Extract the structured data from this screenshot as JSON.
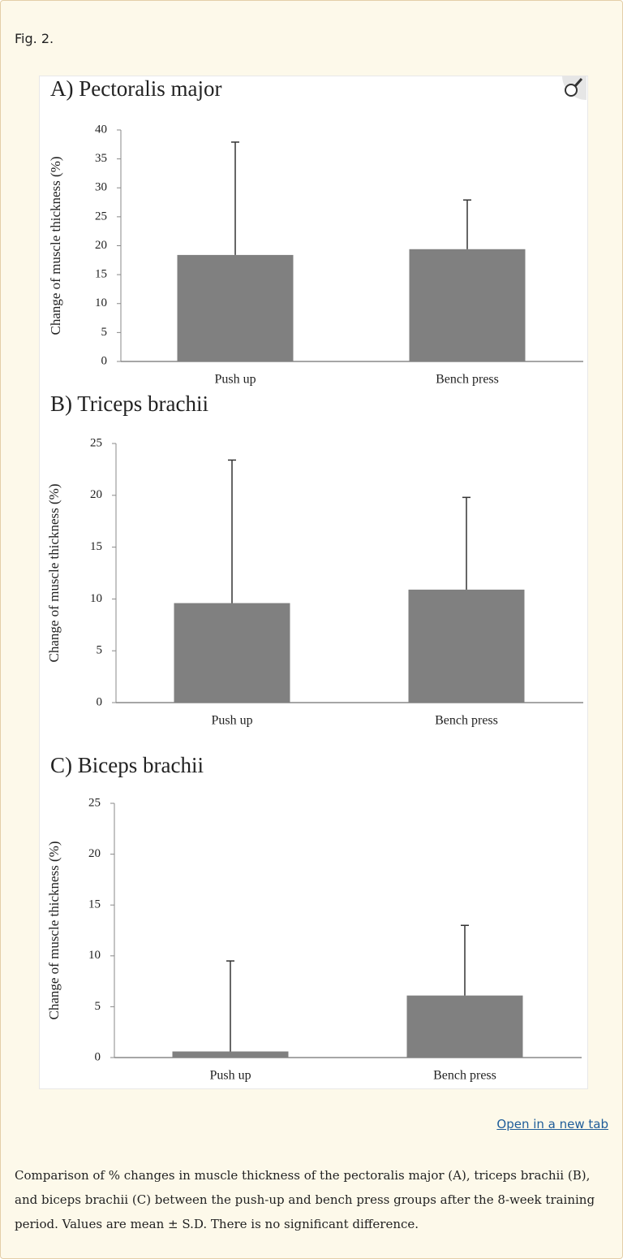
{
  "figure_label": "Fig. 2.",
  "link": "Open in a new tab",
  "caption": "Comparison of % changes in muscle thickness of the pectoralis major (A), triceps brachii (B), and biceps brachii (C) between the push-up and bench press groups after the 8-week training period. Values are mean ± S.D. There is no significant difference.",
  "chart_data": [
    {
      "type": "bar",
      "title": "A) Pectoralis major",
      "y_label": "Change of muscle thickness (%)",
      "categories": [
        "Push up",
        "Bench press"
      ],
      "values": [
        18.4,
        19.4
      ],
      "errors": [
        19.5,
        8.5
      ],
      "color": "#808080",
      "ylim": [
        0,
        40
      ],
      "yticks": [
        0,
        5,
        10,
        15,
        20,
        25,
        30,
        35,
        40
      ]
    },
    {
      "type": "bar",
      "title": "B) Triceps brachii",
      "y_label": "Change of muscle thickness (%)",
      "categories": [
        "Push up",
        "Bench press"
      ],
      "values": [
        9.6,
        10.9
      ],
      "errors": [
        13.8,
        8.9
      ],
      "color": "#808080",
      "ylim": [
        0,
        25
      ],
      "yticks": [
        0,
        5,
        10,
        15,
        20,
        25
      ]
    },
    {
      "type": "bar",
      "title": "C) Biceps brachii",
      "y_label": "Change of muscle thickness (%)",
      "categories": [
        "Push up",
        "Bench press"
      ],
      "values": [
        0.6,
        6.1
      ],
      "errors": [
        8.9,
        6.9
      ],
      "color": "#808080",
      "ylim": [
        0,
        25
      ],
      "yticks": [
        0,
        5,
        10,
        15,
        20,
        25
      ]
    }
  ]
}
